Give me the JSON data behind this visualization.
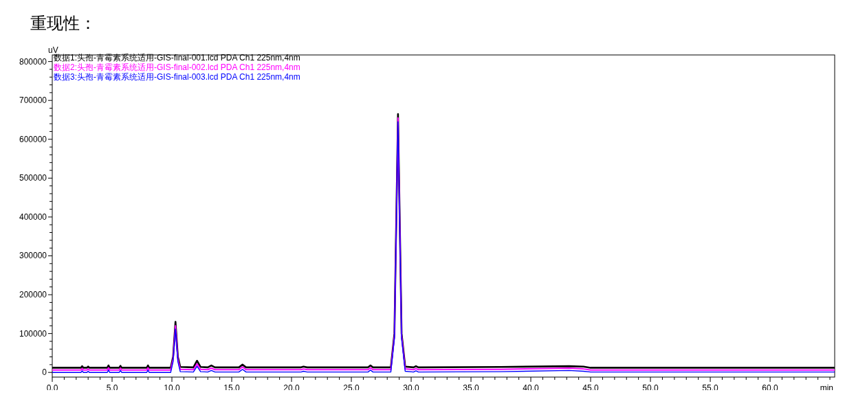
{
  "chart_data": {
    "type": "line",
    "title": "重现性：",
    "xlabel": "min",
    "ylabel": "uV",
    "xlim": [
      0,
      65.4
    ],
    "ylim": [
      -12000,
      817000
    ],
    "xticks": [
      {
        "value": 0,
        "label": "0.0"
      },
      {
        "value": 1,
        "label": null
      },
      {
        "value": 2,
        "label": null
      },
      {
        "value": 3,
        "label": null
      },
      {
        "value": 4,
        "label": null
      },
      {
        "value": 5,
        "label": "5.0"
      },
      {
        "value": 6,
        "label": null
      },
      {
        "value": 7,
        "label": null
      },
      {
        "value": 8,
        "label": null
      },
      {
        "value": 9,
        "label": null
      },
      {
        "value": 10,
        "label": "10.0"
      },
      {
        "value": 11,
        "label": null
      },
      {
        "value": 12,
        "label": null
      },
      {
        "value": 13,
        "label": null
      },
      {
        "value": 14,
        "label": null
      },
      {
        "value": 15,
        "label": "15.0"
      },
      {
        "value": 16,
        "label": null
      },
      {
        "value": 17,
        "label": null
      },
      {
        "value": 18,
        "label": null
      },
      {
        "value": 19,
        "label": null
      },
      {
        "value": 20,
        "label": "20.0"
      },
      {
        "value": 21,
        "label": null
      },
      {
        "value": 22,
        "label": null
      },
      {
        "value": 23,
        "label": null
      },
      {
        "value": 24,
        "label": null
      },
      {
        "value": 25,
        "label": "25.0"
      },
      {
        "value": 26,
        "label": null
      },
      {
        "value": 27,
        "label": null
      },
      {
        "value": 28,
        "label": null
      },
      {
        "value": 29,
        "label": null
      },
      {
        "value": 30,
        "label": "30.0"
      },
      {
        "value": 31,
        "label": null
      },
      {
        "value": 32,
        "label": null
      },
      {
        "value": 33,
        "label": null
      },
      {
        "value": 34,
        "label": null
      },
      {
        "value": 35,
        "label": "35.0"
      },
      {
        "value": 36,
        "label": null
      },
      {
        "value": 37,
        "label": null
      },
      {
        "value": 38,
        "label": null
      },
      {
        "value": 39,
        "label": null
      },
      {
        "value": 40,
        "label": "40.0"
      },
      {
        "value": 41,
        "label": null
      },
      {
        "value": 42,
        "label": null
      },
      {
        "value": 43,
        "label": null
      },
      {
        "value": 44,
        "label": null
      },
      {
        "value": 45,
        "label": "45.0"
      },
      {
        "value": 46,
        "label": null
      },
      {
        "value": 47,
        "label": null
      },
      {
        "value": 48,
        "label": null
      },
      {
        "value": 49,
        "label": null
      },
      {
        "value": 50,
        "label": "50.0"
      },
      {
        "value": 51,
        "label": null
      },
      {
        "value": 52,
        "label": null
      },
      {
        "value": 53,
        "label": null
      },
      {
        "value": 54,
        "label": null
      },
      {
        "value": 55,
        "label": "55.0"
      },
      {
        "value": 56,
        "label": null
      },
      {
        "value": 57,
        "label": null
      },
      {
        "value": 58,
        "label": null
      },
      {
        "value": 59,
        "label": null
      },
      {
        "value": 60,
        "label": "60.0"
      },
      {
        "value": 61,
        "label": null
      },
      {
        "value": 62,
        "label": null
      },
      {
        "value": 63,
        "label": null
      },
      {
        "value": 64,
        "label": null
      },
      {
        "value": 65,
        "label": null
      }
    ],
    "yticks": [
      0,
      {
        "value": 20000,
        "label": null
      },
      {
        "value": 40000,
        "label": null
      },
      {
        "value": 60000,
        "label": null
      },
      {
        "value": 80000,
        "label": null
      },
      100000,
      {
        "value": 120000,
        "label": null
      },
      {
        "value": 140000,
        "label": null
      },
      {
        "value": 160000,
        "label": null
      },
      {
        "value": 180000,
        "label": null
      },
      200000,
      {
        "value": 220000,
        "label": null
      },
      {
        "value": 240000,
        "label": null
      },
      {
        "value": 260000,
        "label": null
      },
      {
        "value": 280000,
        "label": null
      },
      300000,
      {
        "value": 320000,
        "label": null
      },
      {
        "value": 340000,
        "label": null
      },
      {
        "value": 360000,
        "label": null
      },
      {
        "value": 380000,
        "label": null
      },
      400000,
      {
        "value": 420000,
        "label": null
      },
      {
        "value": 440000,
        "label": null
      },
      {
        "value": 460000,
        "label": null
      },
      {
        "value": 480000,
        "label": null
      },
      500000,
      {
        "value": 520000,
        "label": null
      },
      {
        "value": 540000,
        "label": null
      },
      {
        "value": 560000,
        "label": null
      },
      {
        "value": 580000,
        "label": null
      },
      600000,
      {
        "value": 620000,
        "label": null
      },
      {
        "value": 640000,
        "label": null
      },
      {
        "value": 660000,
        "label": null
      },
      {
        "value": 680000,
        "label": null
      },
      700000,
      {
        "value": 720000,
        "label": null
      },
      {
        "value": 740000,
        "label": null
      },
      {
        "value": 760000,
        "label": null
      },
      {
        "value": 780000,
        "label": null
      },
      800000
    ],
    "grid": false,
    "legend": "top left",
    "line_style": "solid",
    "series": [
      {
        "name": "数据1:头孢-青霉素系统适用-GIS-final-001.lcd PDA Ch1 225nm,4nm",
        "color": "#000000",
        "x": [
          0,
          2.4,
          2.5,
          2.6,
          2.9,
          3.0,
          3.1,
          4.6,
          4.7,
          4.8,
          5.6,
          5.7,
          5.8,
          7.9,
          8.0,
          8.1,
          9.9,
          10.1,
          10.3,
          10.5,
          10.7,
          11.8,
          12.1,
          12.4,
          13.0,
          13.3,
          13.6,
          15.6,
          15.9,
          16.2,
          20.8,
          21.0,
          21.3,
          26.4,
          26.6,
          26.8,
          28.3,
          28.6,
          28.9,
          29.2,
          29.5,
          30.2,
          30.4,
          30.6,
          37.5,
          43.2,
          44.4,
          45,
          65.4
        ],
        "values": [
          12000,
          12000,
          16000,
          12000,
          12000,
          15000,
          12000,
          12000,
          18000,
          12000,
          12000,
          17000,
          12000,
          12000,
          18000,
          12000,
          12000,
          40000,
          130000,
          40000,
          14000,
          13000,
          30000,
          14000,
          13000,
          18000,
          13000,
          13000,
          20000,
          13000,
          13000,
          15000,
          13000,
          13000,
          18000,
          13000,
          13000,
          100000,
          665000,
          100000,
          15000,
          13000,
          16000,
          13000,
          14000,
          16000,
          15000,
          12000,
          12000
        ]
      },
      {
        "name": "数据2:头孢-青霉素系统适用-GIS-final-002.lcd PDA Ch1 225nm,4nm",
        "color": "#ff00ff",
        "x": [
          0,
          2.4,
          2.5,
          2.6,
          2.9,
          3.0,
          3.1,
          4.6,
          4.7,
          4.8,
          5.6,
          5.7,
          5.8,
          7.9,
          8.0,
          8.1,
          9.9,
          10.1,
          10.3,
          10.5,
          10.7,
          11.8,
          12.1,
          12.4,
          13.0,
          13.3,
          13.6,
          15.6,
          15.9,
          16.2,
          20.8,
          21.0,
          21.3,
          26.4,
          26.6,
          26.8,
          28.3,
          28.6,
          28.9,
          29.2,
          29.5,
          30.2,
          30.4,
          30.6,
          37.5,
          43.2,
          44.4,
          45,
          65.4
        ],
        "values": [
          6000,
          6000,
          10000,
          6000,
          6000,
          9000,
          6000,
          6000,
          12000,
          6000,
          6000,
          11000,
          6000,
          6000,
          12000,
          6000,
          6000,
          34000,
          120000,
          34000,
          8000,
          7000,
          22000,
          8000,
          7000,
          11000,
          7000,
          7000,
          14000,
          7000,
          7000,
          9000,
          7000,
          7000,
          12000,
          7000,
          7000,
          94000,
          655000,
          94000,
          9000,
          7000,
          10000,
          7000,
          8000,
          11000,
          9000,
          6000,
          6000
        ]
      },
      {
        "name": "数据3:头孢-青霉素系统适用-GIS-final-003.lcd PDA Ch1 225nm,4nm",
        "color": "#0000ff",
        "x": [
          0,
          2.4,
          2.5,
          2.6,
          2.9,
          3.0,
          3.1,
          4.6,
          4.7,
          4.8,
          5.6,
          5.7,
          5.8,
          7.9,
          8.0,
          8.1,
          9.9,
          10.1,
          10.3,
          10.5,
          10.7,
          11.8,
          12.1,
          12.4,
          13.0,
          13.3,
          13.6,
          15.6,
          15.9,
          16.2,
          20.8,
          21.0,
          21.3,
          26.4,
          26.6,
          26.8,
          28.3,
          28.6,
          28.9,
          29.2,
          29.5,
          30.2,
          30.4,
          30.6,
          37.5,
          43.2,
          44.4,
          45,
          65.4
        ],
        "values": [
          0,
          0,
          4000,
          0,
          0,
          3000,
          0,
          0,
          6000,
          0,
          0,
          5000,
          0,
          0,
          6000,
          0,
          0,
          28000,
          112000,
          28000,
          2000,
          1000,
          16000,
          2000,
          1000,
          5000,
          1000,
          1000,
          8000,
          1000,
          1000,
          3000,
          1000,
          1000,
          6000,
          1000,
          1000,
          88000,
          645000,
          88000,
          3000,
          1000,
          4000,
          1000,
          2000,
          5000,
          3000,
          1000,
          1000
        ]
      }
    ]
  }
}
